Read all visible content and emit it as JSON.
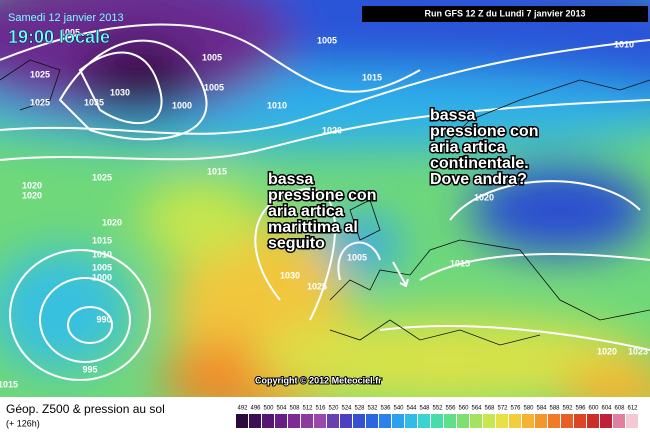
{
  "header": {
    "date": "Samedi 12 janvier 2013",
    "time": "19:00 locale",
    "run": "Run GFS 12 Z du Lundi 7 janvier 2013"
  },
  "annotations": [
    {
      "lines": [
        "bassa",
        "pressione con",
        "aria artica",
        "marittima al",
        "seguito"
      ]
    },
    {
      "lines": [
        "bassa",
        "pressione con",
        "aria artica",
        "continentale.",
        "Dove andra?"
      ]
    }
  ],
  "isobar_labels": [
    "1005",
    "1025",
    "1025",
    "1035",
    "1030",
    "1005",
    "1005",
    "1000",
    "1005",
    "1010",
    "1015",
    "1020",
    "1010",
    "1025",
    "1015",
    "1020",
    "1020",
    "1020",
    "1015",
    "1010",
    "1005",
    "1000",
    "990",
    "995",
    "1015",
    "1030",
    "1025",
    "1005",
    "1015",
    "1020",
    "1020",
    "1023"
  ],
  "copyright": "Copyright © 2012 Meteociel.fr",
  "footer": {
    "title": "Géop. Z500 & pression au sol",
    "lead": "(+ 126h)"
  },
  "scale": {
    "labels": [
      "492",
      "496",
      "500",
      "504",
      "508",
      "512",
      "516",
      "520",
      "524",
      "528",
      "532",
      "536",
      "540",
      "544",
      "548",
      "552",
      "556",
      "560",
      "564",
      "568",
      "572",
      "576",
      "580",
      "584",
      "588",
      "592",
      "596",
      "600",
      "604",
      "608",
      "612"
    ],
    "colors": [
      "#2a0a3a",
      "#3c0f55",
      "#551570",
      "#6b1d86",
      "#7e2a95",
      "#8c3aa0",
      "#9a49aa",
      "#6a3fb0",
      "#4a40c0",
      "#3550d0",
      "#2a66e0",
      "#2a82ea",
      "#2aa0ef",
      "#2fbde6",
      "#3ad3d0",
      "#45ddaa",
      "#5de08a",
      "#7ee070",
      "#a3e35d",
      "#c8e64e",
      "#e6e246",
      "#f3cd3c",
      "#f6b232",
      "#f5962a",
      "#f07a26",
      "#e85e24",
      "#dc4424",
      "#cd2e28",
      "#c0203a",
      "#e080a0",
      "#f4c8d4"
    ]
  }
}
